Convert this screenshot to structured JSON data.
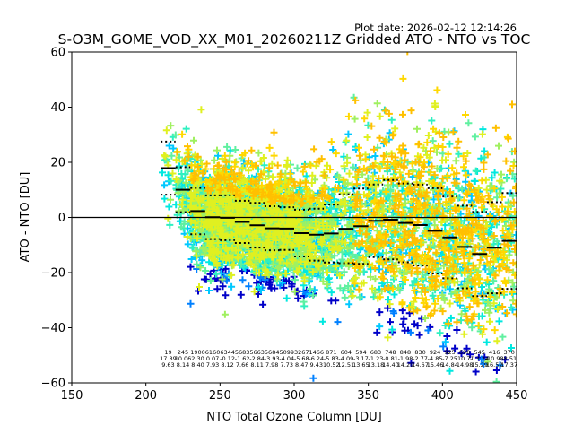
{
  "chart_data": {
    "type": "scatter",
    "title": "S-O3M_GOME_VOD_XX_M01_20260211Z Gridded ATO - NTO vs TOC",
    "subtitle": "Plot date: 2026-02-12 12:14:26",
    "xlabel": "NTO Total Ozone Column [DU]",
    "ylabel": "ATO - NTO [DU]",
    "xlim": [
      150,
      450
    ],
    "ylim": [
      -60,
      60
    ],
    "xticks": [
      150,
      200,
      250,
      300,
      350,
      400,
      450
    ],
    "yticks": [
      -60,
      -40,
      -20,
      0,
      20,
      40,
      60
    ],
    "xtick_labels": [
      "150",
      "200",
      "250",
      "300",
      "350",
      "400",
      "450"
    ],
    "ytick_labels": [
      "−60",
      "−40",
      "−20",
      "0",
      "20",
      "40",
      "60"
    ],
    "grid": false,
    "marker": "+",
    "colormap": [
      "#0000c8",
      "#0080ff",
      "#00c8ff",
      "#00e8e0",
      "#2ef0c0",
      "#60f0a0",
      "#a0f060",
      "#e0f020",
      "#ffd800",
      "#ffc000"
    ],
    "zero_line": 0,
    "bins": {
      "x_start": [
        210,
        220,
        230,
        240,
        250,
        260,
        270,
        280,
        290,
        300,
        310,
        320,
        330,
        340,
        350,
        360,
        370,
        380,
        390,
        400,
        410,
        420,
        430,
        440
      ],
      "width": 10,
      "count": [
        19,
        245,
        1900,
        6160,
        6344,
        5683,
        5663,
        5684,
        5099,
        3267,
        1466,
        871,
        604,
        594,
        683,
        748,
        848,
        830,
        924,
        925,
        690,
        545,
        416,
        370
      ],
      "mean": [
        17.89,
        10.06,
        2.3,
        0.07,
        -0.12,
        -1.62,
        -2.84,
        -3.93,
        -4.04,
        -5.68,
        -6.24,
        -5.83,
        -4.09,
        -3.17,
        -1.23,
        -0.81,
        -1.98,
        -2.77,
        -4.85,
        -7.25,
        -10.71,
        -13.24,
        -10.98,
        -8.51
      ],
      "std": [
        9.63,
        8.14,
        8.4,
        7.93,
        8.12,
        7.66,
        8.11,
        7.98,
        7.73,
        8.47,
        9.43,
        10.52,
        12.51,
        13.65,
        13.18,
        14.4,
        14.29,
        14.67,
        15.46,
        14.84,
        14.98,
        15.29,
        16.52,
        17.37
      ],
      "count_labels": [
        "19",
        "245",
        "1900",
        "6160",
        "6344",
        "5683",
        "5663",
        "5684",
        "5099",
        "3267",
        "1466",
        "871",
        "604",
        "594",
        "683",
        "748",
        "848",
        "830",
        "924",
        "925",
        "690",
        "545",
        "416",
        "370"
      ],
      "mean_labels": [
        "17.89",
        "10.06",
        "2.30",
        "0.07",
        "-0.12",
        "-1.62",
        "-2.84",
        "-3.93",
        "-4.04",
        "-5.68",
        "-6.24",
        "-5.83",
        "-4.09",
        "-3.17",
        "-1.23",
        "-0.81",
        "-1.98",
        "-2.77",
        "-4.85",
        "-7.25",
        "-10.71",
        "-13.24",
        "-10.98",
        "-8.51"
      ],
      "std_labels": [
        "9.63",
        "8.14",
        "8.40",
        "7.93",
        "8.12",
        "7.66",
        "8.11",
        "7.98",
        "7.73",
        "8.47",
        "9.43",
        "10.52",
        "12.51",
        "13.65",
        "13.18",
        "14.40",
        "14.29",
        "14.67",
        "15.46",
        "14.84",
        "14.98",
        "15.29",
        "16.52",
        "17.37"
      ]
    }
  }
}
